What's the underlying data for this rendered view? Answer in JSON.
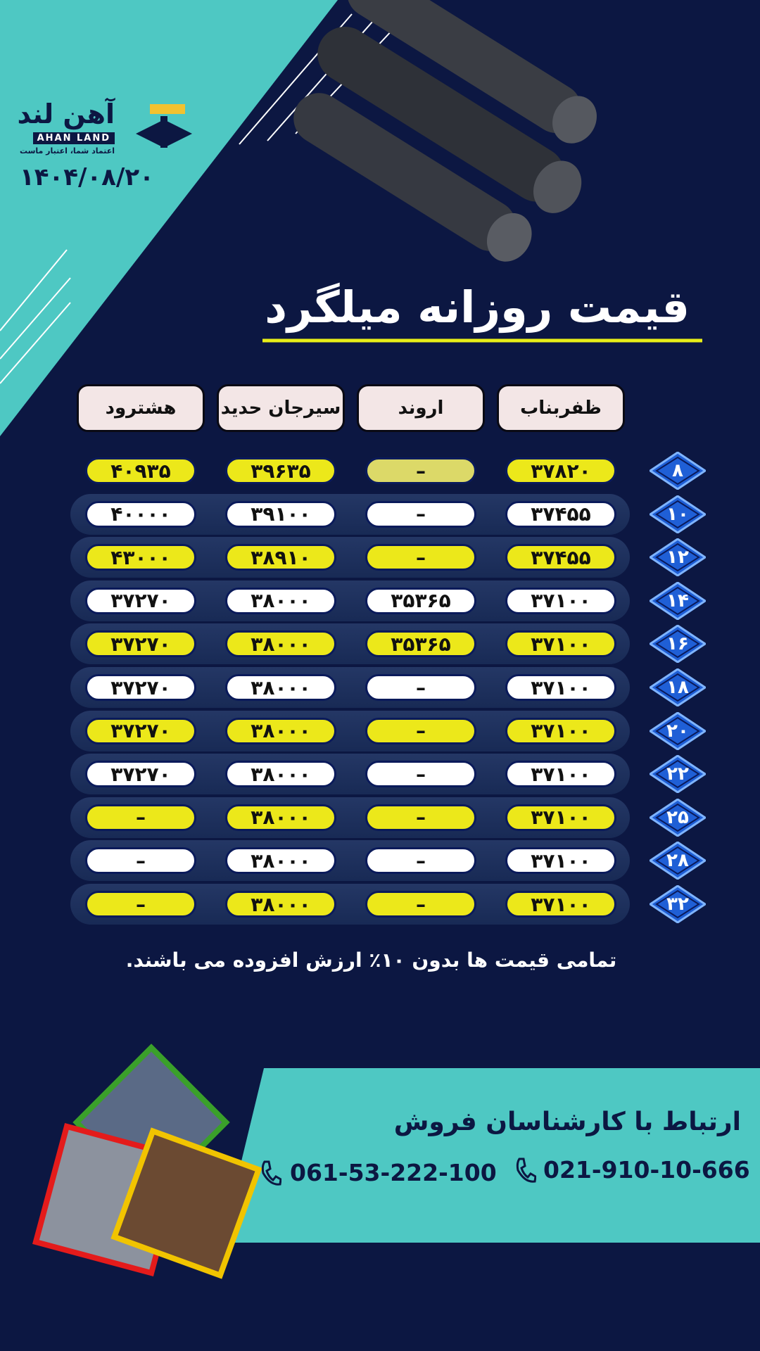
{
  "logo": {
    "name": "آهن لند",
    "latin": "AHAN LAND",
    "tagline": "اعتماد شما، اعتبار ماست"
  },
  "date": "۱۴۰۴/۰۸/۲۰",
  "title": "قیمت روزانه میلگرد",
  "table": {
    "columns": [
      "ظفربناب",
      "اروند",
      "سیرجان حدید",
      "هشترود"
    ],
    "rows": [
      {
        "size": "۸",
        "prices": [
          "۳۷۸۲۰",
          "–",
          "۳۹۶۳۵",
          "۴۰۹۳۵"
        ]
      },
      {
        "size": "۱۰",
        "prices": [
          "۳۷۴۵۵",
          "–",
          "۳۹۱۰۰",
          "۴۰۰۰۰"
        ]
      },
      {
        "size": "۱۲",
        "prices": [
          "۳۷۴۵۵",
          "–",
          "۳۸۹۱۰",
          "۴۳۰۰۰"
        ]
      },
      {
        "size": "۱۴",
        "prices": [
          "۳۷۱۰۰",
          "۳۵۳۶۵",
          "۳۸۰۰۰",
          "۳۷۲۷۰"
        ]
      },
      {
        "size": "۱۶",
        "prices": [
          "۳۷۱۰۰",
          "۳۵۳۶۵",
          "۳۸۰۰۰",
          "۳۷۲۷۰"
        ]
      },
      {
        "size": "۱۸",
        "prices": [
          "۳۷۱۰۰",
          "–",
          "۳۸۰۰۰",
          "۳۷۲۷۰"
        ]
      },
      {
        "size": "۲۰",
        "prices": [
          "۳۷۱۰۰",
          "–",
          "۳۸۰۰۰",
          "۳۷۲۷۰"
        ]
      },
      {
        "size": "۲۲",
        "prices": [
          "۳۷۱۰۰",
          "–",
          "۳۸۰۰۰",
          "۳۷۲۷۰"
        ]
      },
      {
        "size": "۲۵",
        "prices": [
          "۳۷۱۰۰",
          "–",
          "۳۸۰۰۰",
          "–"
        ]
      },
      {
        "size": "۲۸",
        "prices": [
          "۳۷۱۰۰",
          "–",
          "۳۸۰۰۰",
          "–"
        ]
      },
      {
        "size": "۳۲",
        "prices": [
          "۳۷۱۰۰",
          "–",
          "۳۸۰۰۰",
          "–"
        ]
      }
    ]
  },
  "note": "تمامی قیمت ها بدون ۱۰٪ ارزش افزوده می باشند.",
  "contact": {
    "heading": "ارتباط با کارشناسان فروش",
    "phones": [
      "021-910-10-666",
      "061-53-222-100"
    ]
  }
}
